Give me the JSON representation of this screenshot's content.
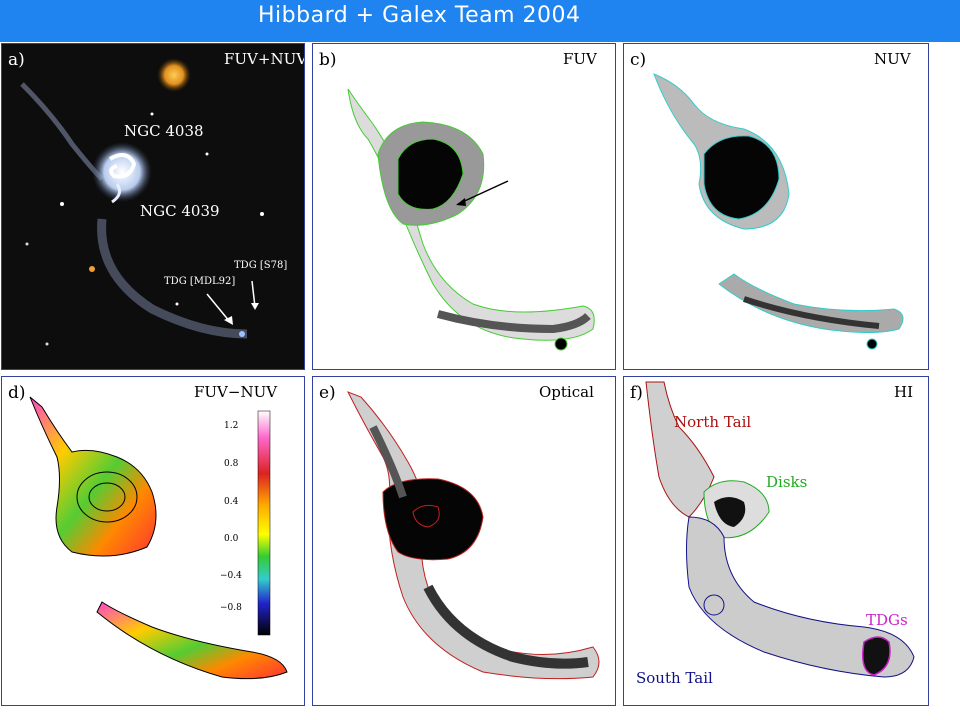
{
  "header": {
    "title": "Hibbard + Galex Team  2004"
  },
  "panels": {
    "a": {
      "letter": "a)",
      "band": "FUV+NUV",
      "galaxy1": "NGC 4038",
      "galaxy2": "NGC 4039",
      "tdg_s78": "TDG [S78]",
      "tdg_mdl92": "TDG [MDL92]"
    },
    "b": {
      "letter": "b)",
      "band": "FUV"
    },
    "c": {
      "letter": "c)",
      "band": "NUV"
    },
    "d": {
      "letter": "d)",
      "band": "FUV−NUV",
      "colorbar_ticks": [
        "1.2",
        "0.8",
        "0.4",
        "0.0",
        "−0.4",
        "−0.8"
      ]
    },
    "e": {
      "letter": "e)",
      "band": "Optical"
    },
    "f": {
      "letter": "f)",
      "band": "HI",
      "north_tail": "North Tail",
      "disks": "Disks",
      "tdgs": "TDGs",
      "south_tail": "South Tail"
    }
  },
  "colors": {
    "header": "#1f83f0",
    "fuv_contour": "#44cc33",
    "nuv_contour": "#33cccc",
    "optical_contour": "#cc2222",
    "north_tail": "#aa1111",
    "disks": "#22aa22",
    "tdgs": "#cc22cc",
    "south_tail": "#111188"
  }
}
